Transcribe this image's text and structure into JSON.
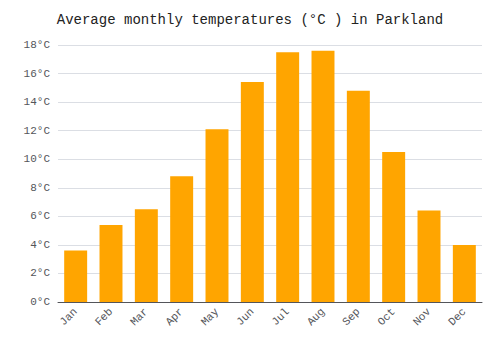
{
  "chart_data": {
    "type": "bar",
    "title": "Average monthly temperatures (°C ) in Parkland",
    "categories": [
      "Jan",
      "Feb",
      "Mar",
      "Apr",
      "May",
      "Jun",
      "Jul",
      "Aug",
      "Sep",
      "Oct",
      "Nov",
      "Dec"
    ],
    "values": [
      3.6,
      5.4,
      6.5,
      8.8,
      12.1,
      15.4,
      17.5,
      17.6,
      14.8,
      10.5,
      6.4,
      4.0
    ],
    "color": "#FFA500",
    "ylim": [
      0,
      18
    ],
    "yticks": [
      {
        "value": 0,
        "label": "0°C"
      },
      {
        "value": 2,
        "label": "2°C"
      },
      {
        "value": 4,
        "label": "4°C"
      },
      {
        "value": 6,
        "label": "6°C"
      },
      {
        "value": 8,
        "label": "8°C"
      },
      {
        "value": 10,
        "label": "10°C"
      },
      {
        "value": 12,
        "label": "12°C"
      },
      {
        "value": 14,
        "label": "14°C"
      },
      {
        "value": 16,
        "label": "16°C"
      },
      {
        "value": 18,
        "label": "18°C"
      }
    ],
    "grid": true
  }
}
